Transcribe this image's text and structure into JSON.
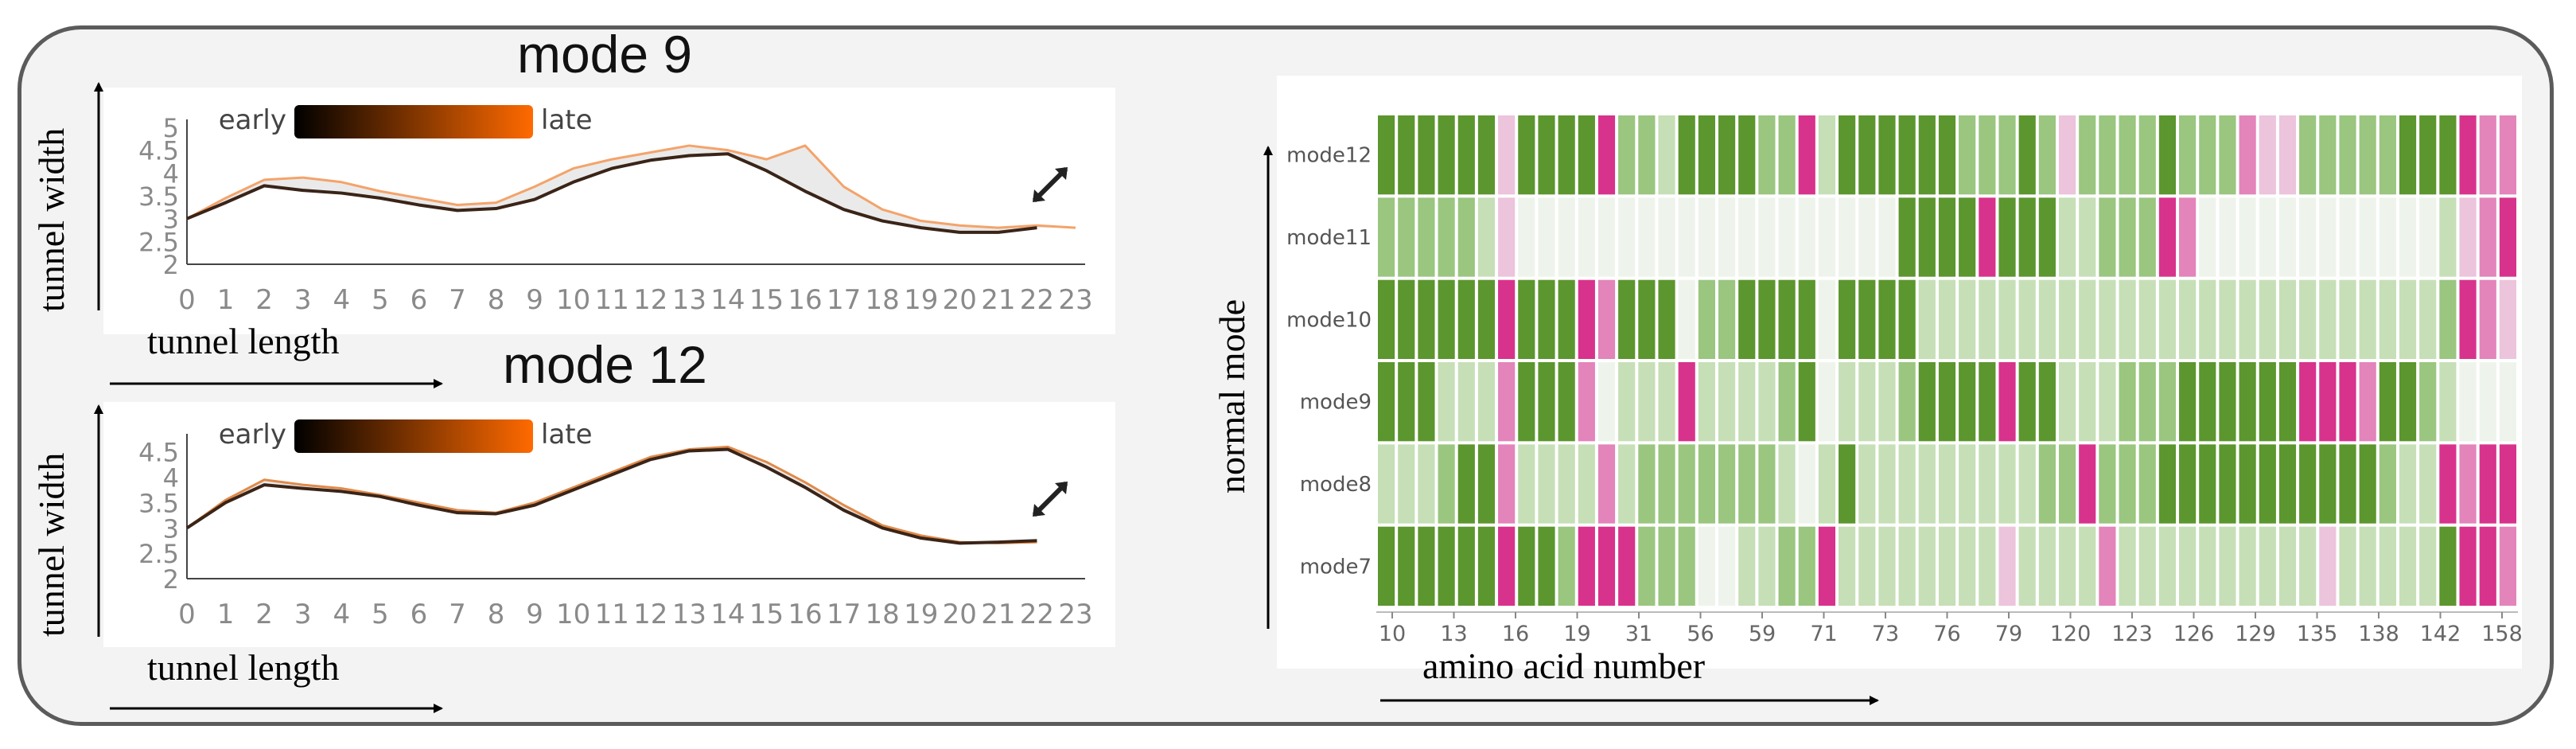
{
  "chart_data": [
    {
      "type": "line",
      "title": "mode 9",
      "xlabel": "tunnel length",
      "ylabel": "tunnel width",
      "x_ticks": [
        "0",
        "1",
        "2",
        "3",
        "4",
        "5",
        "6",
        "7",
        "8",
        "9",
        "10",
        "11",
        "12",
        "13",
        "14",
        "15",
        "16",
        "17",
        "18",
        "19",
        "20",
        "21",
        "22",
        "23"
      ],
      "y_ticks": [
        "2",
        "2.5",
        "3",
        "3.5",
        "4",
        "4.5",
        "5"
      ],
      "xlim": [
        0,
        23
      ],
      "ylim": [
        2,
        5
      ],
      "legend": {
        "start": "early",
        "end": "late",
        "start_color": "#000000",
        "end_color": "#ff6a00"
      },
      "series": [
        {
          "name": "early",
          "color": "#3a2418",
          "x": [
            0,
            1,
            2,
            3,
            4,
            5,
            6,
            7,
            8,
            9,
            10,
            11,
            12,
            13,
            14,
            15,
            16,
            17,
            18,
            19,
            20,
            21,
            22
          ],
          "y": [
            3.0,
            3.35,
            3.72,
            3.62,
            3.56,
            3.45,
            3.3,
            3.18,
            3.22,
            3.42,
            3.8,
            4.1,
            4.28,
            4.38,
            4.42,
            4.05,
            3.6,
            3.2,
            2.95,
            2.8,
            2.7,
            2.7,
            2.8
          ]
        },
        {
          "name": "late",
          "color": "#f4a36a",
          "x": [
            0,
            1,
            2,
            3,
            4,
            5,
            6,
            7,
            8,
            9,
            10,
            11,
            12,
            13,
            14,
            15,
            16,
            17,
            18,
            19,
            20,
            21,
            22,
            23
          ],
          "y": [
            3.0,
            3.45,
            3.85,
            3.9,
            3.8,
            3.6,
            3.45,
            3.3,
            3.35,
            3.7,
            4.1,
            4.3,
            4.45,
            4.6,
            4.5,
            4.3,
            4.6,
            3.7,
            3.2,
            2.95,
            2.85,
            2.8,
            2.85,
            2.8
          ]
        }
      ]
    },
    {
      "type": "line",
      "title": "mode 12",
      "xlabel": "tunnel length",
      "ylabel": "tunnel width",
      "x_ticks": [
        "0",
        "1",
        "2",
        "3",
        "4",
        "5",
        "6",
        "7",
        "8",
        "9",
        "10",
        "11",
        "12",
        "13",
        "14",
        "15",
        "16",
        "17",
        "18",
        "19",
        "20",
        "21",
        "22",
        "23"
      ],
      "y_ticks": [
        "2",
        "2.5",
        "3",
        "3.5",
        "4",
        "4.5"
      ],
      "xlim": [
        0,
        23
      ],
      "ylim": [
        2,
        4.7
      ],
      "legend": {
        "start": "early",
        "end": "late",
        "start_color": "#000000",
        "end_color": "#ff6a00"
      },
      "series": [
        {
          "name": "early",
          "color": "#3a2418",
          "x": [
            0,
            1,
            2,
            3,
            4,
            5,
            6,
            7,
            8,
            9,
            10,
            11,
            12,
            13,
            14,
            15,
            16,
            17,
            18,
            19,
            20,
            21,
            22
          ],
          "y": [
            3.0,
            3.5,
            3.85,
            3.78,
            3.72,
            3.62,
            3.45,
            3.3,
            3.28,
            3.45,
            3.75,
            4.05,
            4.35,
            4.52,
            4.55,
            4.2,
            3.8,
            3.35,
            3.0,
            2.8,
            2.7,
            2.72,
            2.75
          ]
        },
        {
          "name": "late",
          "color": "#e08a4a",
          "x": [
            0,
            1,
            2,
            3,
            4,
            5,
            6,
            7,
            8,
            9,
            10,
            11,
            12,
            13,
            14,
            15,
            16,
            17,
            18,
            19,
            20,
            21,
            22
          ],
          "y": [
            3.0,
            3.55,
            3.95,
            3.85,
            3.78,
            3.65,
            3.5,
            3.35,
            3.3,
            3.5,
            3.8,
            4.1,
            4.4,
            4.55,
            4.6,
            4.3,
            3.9,
            3.45,
            3.05,
            2.85,
            2.72,
            2.7,
            2.72
          ]
        }
      ]
    },
    {
      "type": "heatmap",
      "xlabel": "amino acid number",
      "ylabel": "normal mode",
      "rows": [
        "mode12",
        "mode11",
        "mode10",
        "mode9",
        "mode8",
        "mode7"
      ],
      "x_ticks": [
        "10",
        "13",
        "16",
        "19",
        "31",
        "56",
        "59",
        "71",
        "73",
        "76",
        "79",
        "120",
        "123",
        "126",
        "129",
        "135",
        "138",
        "142",
        "158"
      ],
      "scale": {
        "-3": "#d7338c",
        "-2": "#e384bb",
        "-1": "#ecc4dc",
        "0": "#eef4ec",
        "1": "#c6dfb7",
        "2": "#9ac680",
        "3": "#5c962e"
      },
      "values": [
        [
          3,
          3,
          3,
          3,
          3,
          3,
          -1,
          3,
          3,
          3,
          3,
          -3,
          2,
          2,
          1,
          3,
          3,
          3,
          3,
          2,
          2,
          -3,
          1,
          3,
          3,
          3,
          3,
          3,
          3,
          2,
          2,
          2,
          3,
          2,
          -1,
          2,
          2,
          2,
          2,
          3,
          2,
          2,
          2,
          -2,
          -1,
          -1,
          2,
          2,
          2,
          2,
          2,
          3,
          3,
          3,
          -3,
          -2,
          -2
        ],
        [
          2,
          2,
          2,
          2,
          2,
          1,
          -1,
          0,
          0,
          0,
          0,
          0,
          0,
          0,
          0,
          0,
          0,
          0,
          0,
          0,
          0,
          0,
          0,
          0,
          0,
          0,
          3,
          3,
          3,
          3,
          -3,
          3,
          3,
          3,
          1,
          1,
          2,
          2,
          2,
          -3,
          -2,
          0,
          0,
          0,
          0,
          0,
          0,
          0,
          0,
          0,
          0,
          0,
          0,
          1,
          -1,
          -2,
          -3
        ],
        [
          3,
          3,
          3,
          3,
          3,
          3,
          -3,
          3,
          3,
          3,
          -3,
          -2,
          3,
          3,
          3,
          0,
          2,
          2,
          3,
          3,
          3,
          3,
          0,
          3,
          3,
          3,
          3,
          1,
          1,
          1,
          1,
          1,
          1,
          1,
          1,
          1,
          1,
          1,
          1,
          1,
          1,
          1,
          1,
          1,
          1,
          1,
          1,
          1,
          1,
          1,
          1,
          1,
          1,
          2,
          -3,
          -2,
          -1
        ],
        [
          3,
          3,
          3,
          1,
          1,
          1,
          -2,
          3,
          3,
          3,
          -2,
          0,
          1,
          1,
          1,
          -3,
          1,
          1,
          1,
          1,
          2,
          3,
          0,
          1,
          1,
          1,
          2,
          3,
          3,
          3,
          3,
          -3,
          3,
          3,
          1,
          1,
          1,
          2,
          2,
          2,
          3,
          3,
          3,
          3,
          3,
          3,
          -3,
          -3,
          -3,
          -2,
          3,
          3,
          2,
          1,
          0,
          0,
          0
        ],
        [
          1,
          1,
          1,
          2,
          3,
          3,
          -2,
          1,
          1,
          1,
          1,
          -2,
          1,
          2,
          2,
          2,
          2,
          2,
          2,
          2,
          1,
          0,
          1,
          3,
          1,
          1,
          1,
          1,
          1,
          1,
          1,
          1,
          1,
          2,
          2,
          -3,
          2,
          2,
          2,
          3,
          3,
          3,
          3,
          3,
          3,
          3,
          3,
          3,
          3,
          3,
          2,
          1,
          1,
          -3,
          -2,
          -3,
          -3
        ],
        [
          3,
          3,
          3,
          3,
          3,
          3,
          -3,
          3,
          3,
          2,
          -3,
          -3,
          -3,
          2,
          2,
          2,
          0,
          0,
          1,
          1,
          2,
          2,
          -3,
          1,
          1,
          1,
          1,
          1,
          1,
          1,
          1,
          -1,
          1,
          1,
          1,
          1,
          -2,
          1,
          1,
          1,
          1,
          1,
          1,
          1,
          1,
          1,
          1,
          -1,
          1,
          1,
          1,
          1,
          1,
          3,
          -3,
          -3,
          -2
        ]
      ]
    }
  ]
}
